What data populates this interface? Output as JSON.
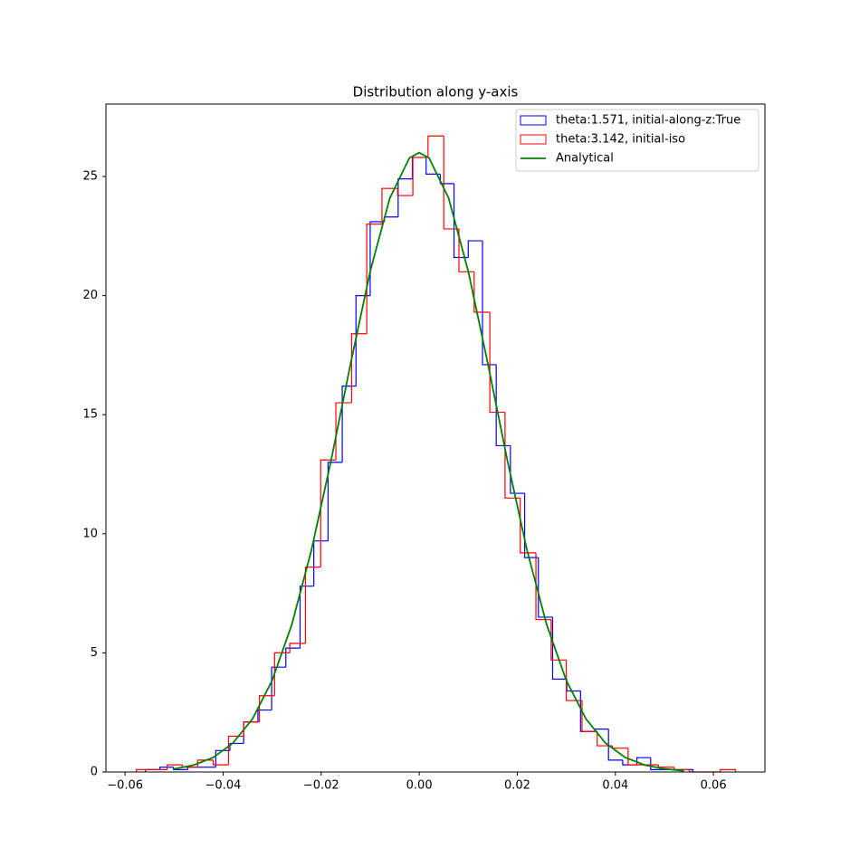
{
  "chart_data": {
    "type": "histogram",
    "title": "Distribution along y-axis",
    "xlim": [
      -0.0639,
      0.0705
    ],
    "ylim": [
      0,
      28.04
    ],
    "xticks": [
      {
        "value": -0.06,
        "label": "−0.06"
      },
      {
        "value": -0.04,
        "label": "−0.04"
      },
      {
        "value": -0.02,
        "label": "−0.02"
      },
      {
        "value": 0,
        "label": "0.00"
      },
      {
        "value": 0.02,
        "label": "0.02"
      },
      {
        "value": 0.04,
        "label": "0.04"
      },
      {
        "value": 0.06,
        "label": "0.06"
      }
    ],
    "yticks": [
      0,
      5,
      10,
      15,
      20,
      25
    ],
    "grid": false,
    "legend": "upper right",
    "series": [
      {
        "name": "theta:1.571, initial-along-z:True",
        "type": "histogram",
        "color": "#0000ff",
        "bins": [
          -0.0558,
          -0.0529,
          -0.0501,
          -0.0472,
          -0.0444,
          -0.0415,
          -0.0386,
          -0.0358,
          -0.0329,
          -0.0301,
          -0.0272,
          -0.0243,
          -0.0215,
          -0.0186,
          -0.0157,
          -0.0129,
          -0.01,
          -0.0071,
          -0.0043,
          -0.0014,
          0.0014,
          0.0043,
          0.0071,
          0.01,
          0.0129,
          0.0157,
          0.0186,
          0.0215,
          0.0243,
          0.0272,
          0.0301,
          0.0329,
          0.0358,
          0.0386,
          0.0415,
          0.0444,
          0.0472,
          0.0501,
          0.0529,
          0.0558
        ],
        "values": [
          0.1,
          0.2,
          0.1,
          0.2,
          0.2,
          0.9,
          1.2,
          2.1,
          2.6,
          4.4,
          5.2,
          7.8,
          9.7,
          13.0,
          16.2,
          20.0,
          23.1,
          23.3,
          24.9,
          25.8,
          25.1,
          24.7,
          21.6,
          22.3,
          17.1,
          13.7,
          11.7,
          9.0,
          6.5,
          3.9,
          3.4,
          1.7,
          1.8,
          0.5,
          0.3,
          0.6,
          0.1,
          0.1,
          0.1
        ]
      },
      {
        "name": "theta:3.142, initial-iso",
        "type": "histogram",
        "color": "#ff0000",
        "bins": [
          -0.0577,
          -0.0546,
          -0.0514,
          -0.0483,
          -0.0452,
          -0.042,
          -0.0389,
          -0.0358,
          -0.0326,
          -0.0295,
          -0.0264,
          -0.0232,
          -0.0201,
          -0.017,
          -0.0138,
          -0.0107,
          -0.0076,
          -0.0044,
          -0.0013,
          0.0018,
          0.005,
          0.0081,
          0.0112,
          0.0144,
          0.0175,
          0.0206,
          0.0238,
          0.0269,
          0.03,
          0.0332,
          0.0363,
          0.0394,
          0.0426,
          0.0457,
          0.0488,
          0.052,
          0.0551,
          0.0582,
          0.0614,
          0.0645
        ],
        "values": [
          0.1,
          0.1,
          0.3,
          0.2,
          0.5,
          0.3,
          1.5,
          2.1,
          3.2,
          5.0,
          5.4,
          8.6,
          13.1,
          15.5,
          18.4,
          23.0,
          24.5,
          24.2,
          25.8,
          26.7,
          22.8,
          21.0,
          19.3,
          15.1,
          11.5,
          9.2,
          6.4,
          4.7,
          3.0,
          1.7,
          1.1,
          1.0,
          0.3,
          0.3,
          0.2,
          0.1,
          0,
          0,
          0.1
        ]
      },
      {
        "name": "Analytical",
        "type": "line",
        "color": "#008000",
        "x": [
          -0.05,
          -0.046,
          -0.042,
          -0.038,
          -0.034,
          -0.03,
          -0.026,
          -0.022,
          -0.018,
          -0.014,
          -0.01,
          -0.006,
          -0.002,
          0,
          0.002,
          0.006,
          0.01,
          0.014,
          0.018,
          0.022,
          0.026,
          0.03,
          0.034,
          0.038,
          0.042,
          0.046,
          0.05,
          0.054
        ],
        "values": [
          0.13,
          0.29,
          0.61,
          1.21,
          2.23,
          3.84,
          6.18,
          9.3,
          13.06,
          17.14,
          21.02,
          24.09,
          25.78,
          26,
          25.78,
          24.09,
          21.02,
          17.14,
          13.06,
          9.3,
          6.18,
          3.84,
          2.23,
          1.21,
          0.61,
          0.29,
          0.13,
          0.05
        ]
      }
    ]
  }
}
